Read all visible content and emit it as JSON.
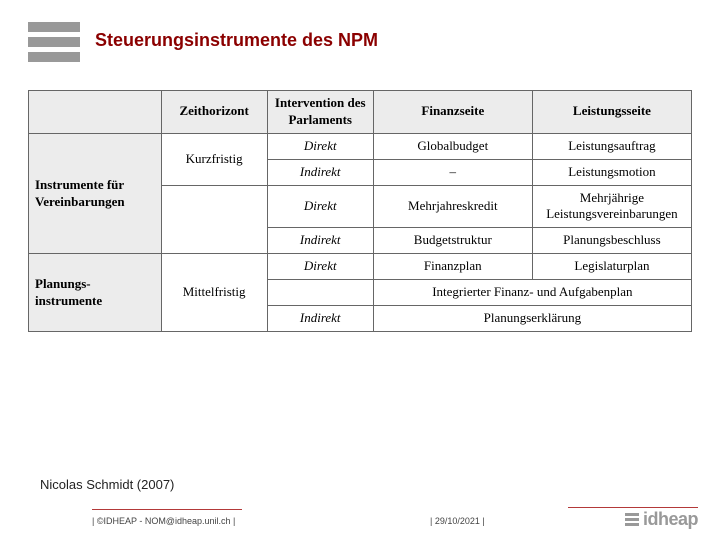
{
  "title": "Steuerungsinstrumente des NPM",
  "source": "Nicolas Schmidt (2007)",
  "footer_left": "| ©IDHEAP - NOM@idheap.unil.ch |",
  "footer_date": "| 29/10/2021 |",
  "brand_text": "idheap",
  "colors": {
    "accent": "#8b0000",
    "header_bg": "#ececec",
    "border": "#666666",
    "bar_gray": "#999999"
  },
  "table": {
    "headers": [
      "",
      "Zeithorizont",
      "Intervention des Parlaments",
      "Finanzseite",
      "Leistungsseite"
    ],
    "row_groups": [
      {
        "label": "Instrumente für Vereinbarungen",
        "zeithorizont": "Kurzfristig",
        "rows": [
          {
            "intervention": "Direkt",
            "finanz": "Globalbudget",
            "leistung": "Leistungsauftrag"
          },
          {
            "intervention": "Indirekt",
            "finanz": "–",
            "leistung": "Leistungsmotion"
          }
        ]
      },
      {
        "label": "",
        "zeithorizont": "",
        "rows": [
          {
            "intervention": "Direkt",
            "finanz": "Mehrjahreskredit",
            "leistung": "Mehrjährige Leistungsvereinbarungen"
          },
          {
            "intervention": "Indirekt",
            "finanz": "Budgetstruktur",
            "leistung": "Planungsbeschluss"
          }
        ]
      },
      {
        "label": "Planungs-\ninstrumente",
        "zeithorizont": "Mittelfristig",
        "rows": [
          {
            "intervention": "Direkt",
            "finanz": "Finanzplan",
            "leistung": "Legislaturplan"
          },
          {
            "intervention": "",
            "finanz": "Integrierter Finanz- und Aufgabenplan",
            "leistung": "",
            "span2": true
          },
          {
            "intervention": "Indirekt",
            "finanz": "Planungserklärung",
            "leistung": "",
            "span2": true
          }
        ]
      }
    ]
  }
}
